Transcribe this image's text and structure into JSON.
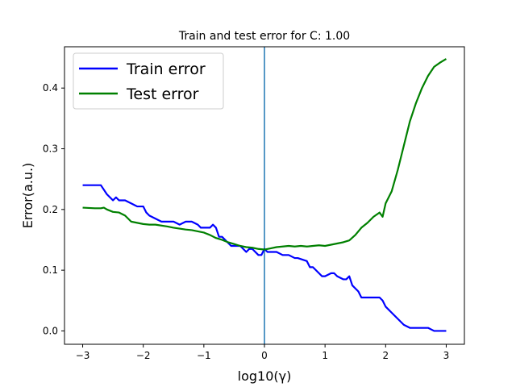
{
  "chart_data": {
    "type": "line",
    "title": "Train and test error for C: 1.00",
    "xlabel": "log10(γ)",
    "ylabel": "Error(a.u.)",
    "xlim": [
      -3.3,
      3.3
    ],
    "ylim": [
      -0.022,
      0.468
    ],
    "xticks": [
      -3,
      -2,
      -1,
      0,
      1,
      2,
      3
    ],
    "xtick_labels": [
      "−3",
      "−2",
      "−1",
      "0",
      "1",
      "2",
      "3"
    ],
    "yticks": [
      0.0,
      0.1,
      0.2,
      0.3,
      0.4
    ],
    "ytick_labels": [
      "0.0",
      "0.1",
      "0.2",
      "0.3",
      "0.4"
    ],
    "grid": false,
    "legend_position": "top-left",
    "vline": {
      "x": 0.0,
      "color": "#1f77b4"
    },
    "series": [
      {
        "name": "Train error",
        "color": "#0000ff",
        "x": [
          -3.0,
          -2.7,
          -2.6,
          -2.5,
          -2.45,
          -2.4,
          -2.3,
          -2.2,
          -2.1,
          -2.0,
          -1.95,
          -1.9,
          -1.8,
          -1.7,
          -1.5,
          -1.4,
          -1.3,
          -1.2,
          -1.1,
          -1.05,
          -1.0,
          -0.9,
          -0.85,
          -0.8,
          -0.75,
          -0.7,
          -0.6,
          -0.55,
          -0.5,
          -0.45,
          -0.4,
          -0.3,
          -0.25,
          -0.2,
          -0.1,
          -0.05,
          0.0,
          0.05,
          0.1,
          0.2,
          0.3,
          0.4,
          0.5,
          0.55,
          0.7,
          0.75,
          0.8,
          0.9,
          0.95,
          1.0,
          1.1,
          1.15,
          1.2,
          1.3,
          1.35,
          1.4,
          1.45,
          1.5,
          1.55,
          1.6,
          1.8,
          1.9,
          1.95,
          2.0,
          2.1,
          2.2,
          2.3,
          2.4,
          2.5,
          2.6,
          2.7,
          2.8,
          2.9,
          3.0
        ],
        "y": [
          0.24,
          0.24,
          0.225,
          0.215,
          0.22,
          0.215,
          0.215,
          0.21,
          0.205,
          0.205,
          0.195,
          0.19,
          0.185,
          0.18,
          0.18,
          0.175,
          0.18,
          0.18,
          0.175,
          0.17,
          0.17,
          0.17,
          0.175,
          0.17,
          0.155,
          0.155,
          0.145,
          0.14,
          0.14,
          0.14,
          0.14,
          0.13,
          0.135,
          0.135,
          0.125,
          0.125,
          0.135,
          0.13,
          0.13,
          0.13,
          0.125,
          0.125,
          0.12,
          0.12,
          0.115,
          0.105,
          0.105,
          0.095,
          0.09,
          0.09,
          0.095,
          0.095,
          0.09,
          0.085,
          0.085,
          0.09,
          0.075,
          0.07,
          0.065,
          0.055,
          0.055,
          0.055,
          0.05,
          0.04,
          0.03,
          0.02,
          0.01,
          0.005,
          0.005,
          0.005,
          0.005,
          0.0,
          0.0,
          0.0
        ]
      },
      {
        "name": "Test error",
        "color": "#008000",
        "x": [
          -3.0,
          -2.8,
          -2.7,
          -2.65,
          -2.6,
          -2.5,
          -2.4,
          -2.3,
          -2.2,
          -2.1,
          -2.0,
          -1.9,
          -1.8,
          -1.6,
          -1.5,
          -1.3,
          -1.2,
          -1.0,
          -0.9,
          -0.8,
          -0.7,
          -0.6,
          -0.5,
          -0.4,
          -0.3,
          -0.2,
          -0.1,
          0.0,
          0.1,
          0.2,
          0.3,
          0.4,
          0.5,
          0.6,
          0.7,
          0.8,
          0.9,
          1.0,
          1.1,
          1.2,
          1.3,
          1.4,
          1.5,
          1.6,
          1.7,
          1.8,
          1.9,
          1.95,
          2.0,
          2.1,
          2.2,
          2.3,
          2.4,
          2.5,
          2.6,
          2.7,
          2.8,
          2.9,
          3.0
        ],
        "y": [
          0.203,
          0.202,
          0.202,
          0.203,
          0.2,
          0.196,
          0.195,
          0.19,
          0.18,
          0.178,
          0.176,
          0.175,
          0.175,
          0.172,
          0.17,
          0.167,
          0.166,
          0.162,
          0.158,
          0.153,
          0.15,
          0.146,
          0.143,
          0.14,
          0.138,
          0.137,
          0.135,
          0.134,
          0.136,
          0.138,
          0.139,
          0.14,
          0.139,
          0.14,
          0.139,
          0.14,
          0.141,
          0.14,
          0.142,
          0.144,
          0.146,
          0.149,
          0.158,
          0.17,
          0.178,
          0.188,
          0.195,
          0.188,
          0.21,
          0.23,
          0.265,
          0.305,
          0.345,
          0.375,
          0.4,
          0.42,
          0.435,
          0.442,
          0.448
        ]
      }
    ]
  }
}
